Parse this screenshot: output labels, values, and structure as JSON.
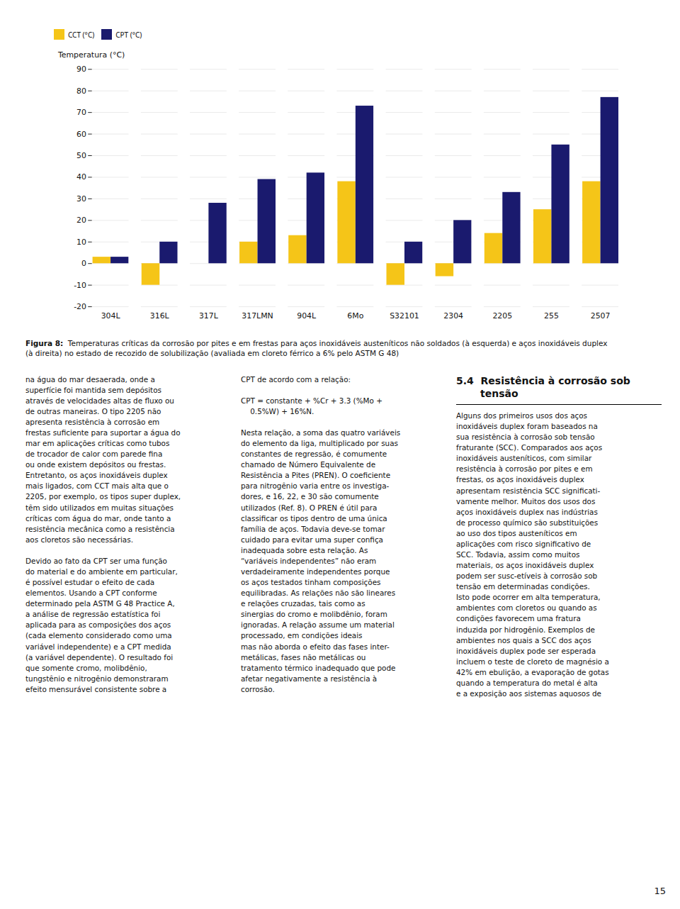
{
  "chart_data": {
    "type": "bar",
    "categories": [
      "304L",
      "316L",
      "317L",
      "317LMN",
      "904L",
      "6Mo",
      "S32101",
      "2304",
      "2205",
      "255",
      "2507"
    ],
    "series": [
      {
        "name": "CCT (°C)",
        "color": "#F5C518",
        "values": [
          3,
          -10,
          0,
          10,
          13,
          38,
          -10,
          -6,
          14,
          25,
          38
        ]
      },
      {
        "name": "CPT (°C)",
        "color": "#1A1A6E",
        "values": [
          3,
          10,
          28,
          39,
          42,
          73,
          10,
          20,
          33,
          55,
          77
        ]
      }
    ],
    "ylabel": "Temperatura (°C)",
    "ylim": [
      -20,
      90
    ],
    "yticks": [
      -20,
      -10,
      0,
      10,
      20,
      30,
      40,
      50,
      60,
      70,
      80,
      90
    ],
    "grid": true,
    "legend": "top"
  },
  "caption_label": "Figura 8:",
  "caption": "  Temperaturas críticas da corrosão por pites e em frestas para aços inoxidáveis austeníticos não soldados (à esquerda) e aços inoxidáveis duplex\n(à direita) no estado de recozido de solubilização (avaliada em cloreto férrico a 6% pelo ASTM G 48)",
  "columns": [
    "na água do mar desaerada, onde a\nsuperfície foi mantida sem depósitos\natravés de velocidades altas de fluxo ou\nde outras maneiras. O tipo 2205 não\napresenta resistência à corrosão em\nfrestas suficiente para suportar a água do\nmar em aplicações críticas como tubos\nde trocador de calor com parede fina\nou onde existem depósitos ou frestas.\nEntretanto, os aços inoxidáveis duplex\nmais ligados, com CCT mais alta que o\n2205, por exemplo, os tipos super duplex,\ntêm sido utilizados em muitas situações\ncríticas com água do mar, onde tanto a\nresistência mecânica como a resistência\naos cloretos são necessárias.\n\nDevido ao fato da CPT ser uma função\ndo material e do ambiente em particular,\né possível estudar o efeito de cada\nelementos. Usando a CPT conforme\ndeterminado pela ASTM G 48 Practice A,\na análise de regressão estatística foi\naplicada para as composições dos aços\n(cada elemento considerado como uma\nvariável independente) e a CPT medida\n(a variável dependente). O resultado foi\nque somente cromo, molibdênio,\ntungstênio e nitrogênio demonstraram\nefeito mensurável consistente sobre a",
    "CPT de acordo com a relação:\n\nCPT = constante + %Cr + 3.3 (%Mo +\n    0.5%W) + 16%N.\n\nNesta relação, a soma das quatro variáveis\ndo elemento da liga, multiplicado por suas\nconstantes de regressão, é comumente\nchamado de Número Equivalente de\nResistência a Pites (PREN). O coeficiente\npara nitrogênio varia entre os investiga-\ndores, e 16, 22, e 30 são comumente\nutilizados (Ref. 8). O PREN é útil para\nclassificar os tipos dentro de uma única\nfamília de aços. Todavia deve-se tomar\ncuidado para evitar uma super confiça\ninadequada sobre esta relação. As\n“variáveis independentes” não eram\nverdadeiramente independentes porque\nos aços testados tinham composições\nequilibradas. As relações não são lineares\ne relações cruzadas, tais como as\nsinergias do cromo e molibdênio, foram\nignoradas. A relação assume um material\nprocessado, em condições ideais\nmas não aborda o efeito das fases inter-\nmetálicas, fases não metálicas ou\ntratamento térmico inadequado que pode\nafetar negativamente a resistência à\ncorrosão.",
    "Alguns dos primeiros usos dos aços\ninoxidáveis duplex foram baseados na\nsua resistência à corrosão sob tensão\nfraturante (SCC). Comparados aos aços\ninoxidáveis austeníticos, com similar\nresistência à corrosão por pites e em\nfrestas, os aços inoxidáveis duplex\napresentam resistência SCC significati-\nvamente melhor. Muitos dos usos dos\naços inoxidáveis duplex nas indústrias\nde processo químico são substituições\nao uso dos tipos austeníticos em\naplicações com risco significativo de\nSCC. Todavia, assim como muitos\nmateriais, os aços inoxidáveis duplex\npodem ser susc-etíveis à corrosão sob\ntensão em determinadas condições.\nIsto pode ocorrer em alta temperatura,\nambientes com cloretos ou quando as\ncondições favorecem uma fratura\ninduzida por hidrogênio. Exemplos de\nambientes nos quais a SCC dos aços\ninoxidáveis duplex pode ser esperada\nincluem o teste de cloreto de magnésio a\n42% em ebulição, a evaporação de gotas\nquando a temperatura do metal é alta\ne a exposição aos sistemas aquosos de"
  ],
  "section_title": [
    "5.4  Resistência à corrosão sob",
    "       tensão"
  ],
  "page_number": "15"
}
